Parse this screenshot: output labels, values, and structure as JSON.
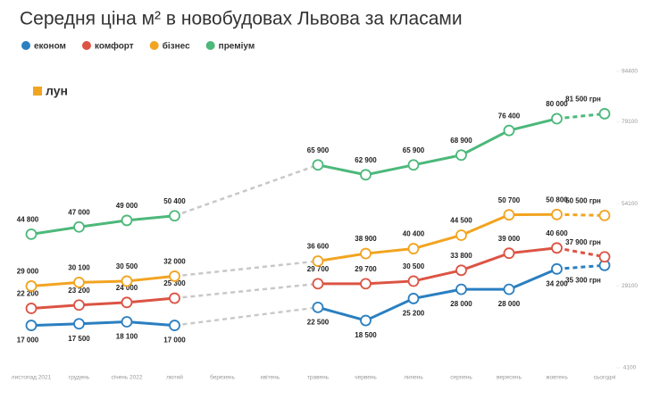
{
  "chart_data": {
    "type": "line",
    "title": "Середня ціна м² в новобудовах Львова за класами",
    "logo": "лун",
    "categories": [
      "листопад 2021",
      "грудень",
      "січень 2022",
      "лютий",
      "березень",
      "квітень",
      "травень",
      "червень",
      "липень",
      "серпень",
      "вересень",
      "жовтень",
      "сьогодні"
    ],
    "series": [
      {
        "name": "економ",
        "color": "#2a7fc1",
        "values": [
          17000,
          17500,
          18100,
          17000,
          null,
          null,
          22500,
          18500,
          25200,
          28000,
          28000,
          34200,
          35300
        ],
        "value_labels": [
          "17 000",
          "17 500",
          "18 100",
          "17 000",
          null,
          null,
          "22 500",
          "18 500",
          "25 200",
          "28 000",
          "28 000",
          "34 200",
          "35 300 грн"
        ]
      },
      {
        "name": "комфорт",
        "color": "#dc5444",
        "values": [
          22200,
          23200,
          24000,
          25300,
          null,
          null,
          29700,
          29700,
          30500,
          33800,
          39000,
          40600,
          37900
        ],
        "value_labels": [
          "22 200",
          "23 200",
          "24 000",
          "25 300",
          null,
          null,
          "29 700",
          "29 700",
          "30 500",
          "33 800",
          "39 000",
          "40 600",
          "37 900 грн"
        ]
      },
      {
        "name": "бізнес",
        "color": "#f2a420",
        "values": [
          29000,
          30100,
          30500,
          32000,
          null,
          null,
          36600,
          38900,
          40400,
          44500,
          50700,
          50800,
          50500
        ],
        "value_labels": [
          "29 000",
          "30 100",
          "30 500",
          "32 000",
          null,
          null,
          "36 600",
          "38 900",
          "40 400",
          "44 500",
          "50 700",
          "50 800",
          "50 500 грн"
        ]
      },
      {
        "name": "преміум",
        "color": "#4cb87a",
        "values": [
          44800,
          47000,
          49000,
          50400,
          null,
          null,
          65900,
          62900,
          65900,
          68900,
          76400,
          80000,
          81500
        ],
        "value_labels": [
          "44 800",
          "47 000",
          "49 000",
          "50 400",
          null,
          null,
          "65 900",
          "62 900",
          "65 900",
          "68 900",
          "76 400",
          "80 000",
          "81 500 грн"
        ]
      }
    ],
    "ylim": [
      4100,
      94400
    ],
    "yticks": [
      4100,
      29100,
      54100,
      79100,
      94400
    ],
    "grid": false,
    "y_axis_side": "right",
    "legend": "top-left"
  }
}
